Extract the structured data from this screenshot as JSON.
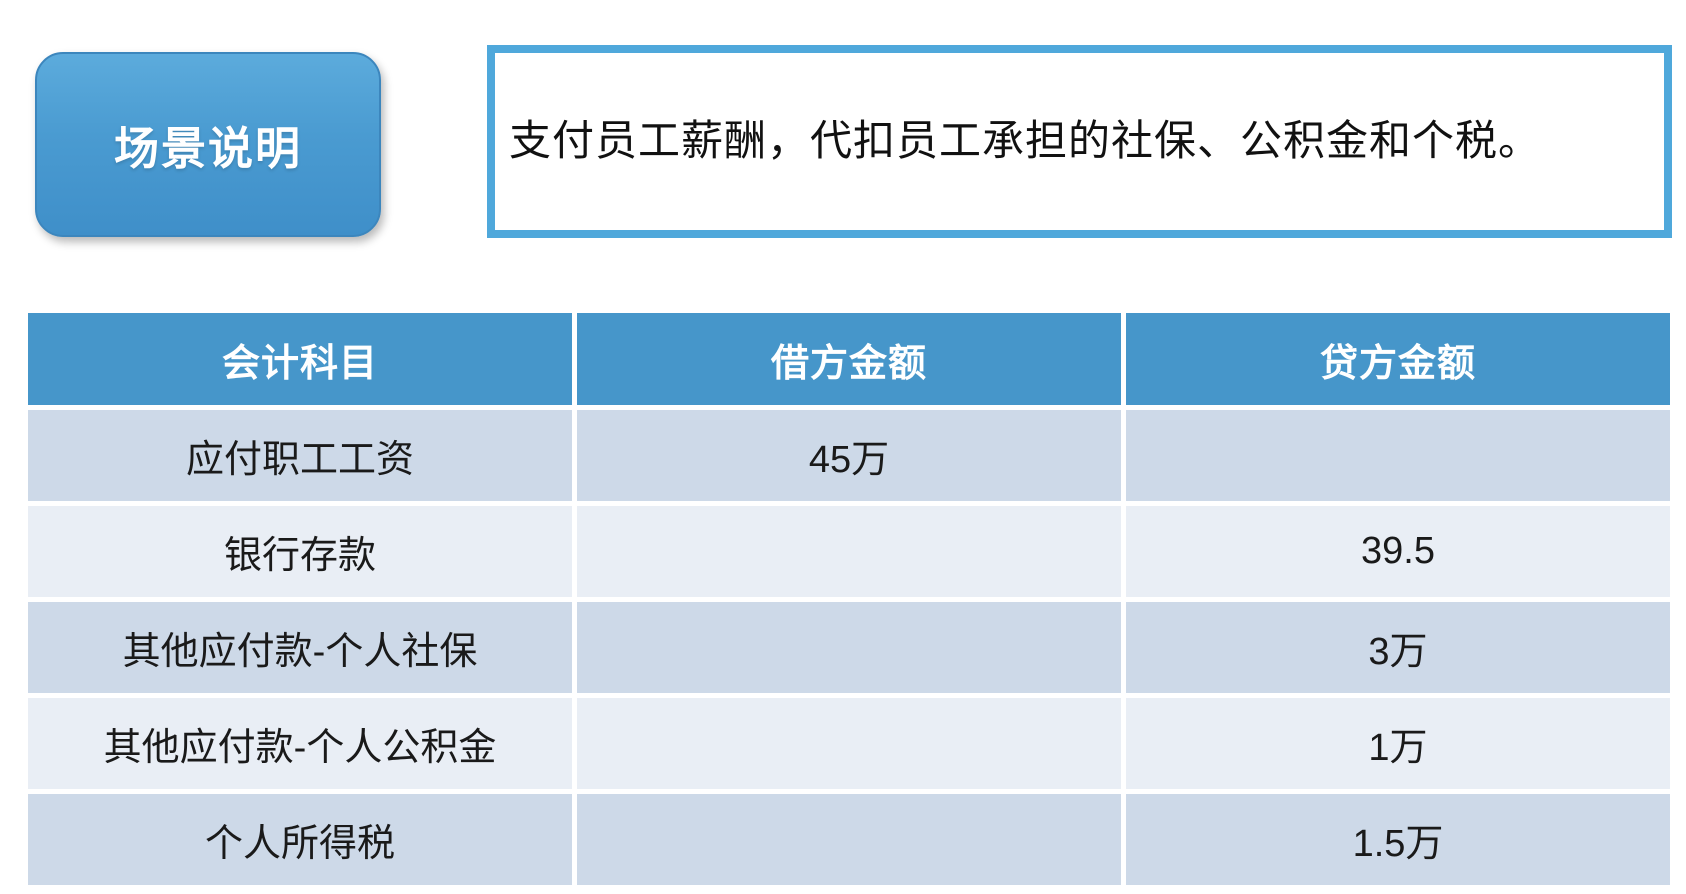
{
  "scenario": {
    "badge_label": "场景说明",
    "description": "支付员工薪酬，代扣员工承担的社保、公积金和个税。"
  },
  "table": {
    "columns": [
      "会计科目",
      "借方金额",
      "贷方金额"
    ],
    "rows": [
      {
        "subject": "应付职工工资",
        "debit": "45万",
        "credit": ""
      },
      {
        "subject": "银行存款",
        "debit": "",
        "credit": "39.5"
      },
      {
        "subject": "其他应付款-个人社保",
        "debit": "",
        "credit": "3万"
      },
      {
        "subject": "其他应付款-个人公积金",
        "debit": "",
        "credit": "1万"
      },
      {
        "subject": "个人所得税",
        "debit": "",
        "credit": "1.5万"
      }
    ]
  },
  "colors": {
    "accent_blue": "#4696ca",
    "badge_gradient_top": "#5cabdc",
    "badge_gradient_bottom": "#3f8fc9",
    "box_border_blue": "#4fa8db",
    "row_odd_background": "#cdd9e8",
    "row_even_background": "#e9eef5",
    "header_text": "#ffffff",
    "body_text": "#1a1a1a"
  }
}
